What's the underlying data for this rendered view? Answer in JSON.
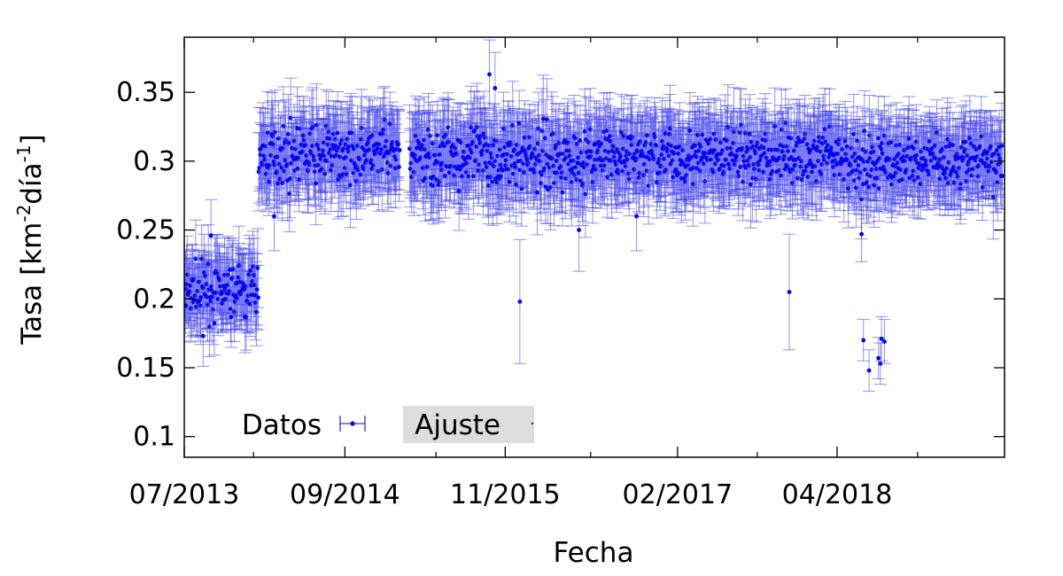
{
  "chart_data": {
    "type": "scatter",
    "xlabel": "Fecha",
    "ylabel": "Tasa [km",
    "ylabel_sup1": "-2",
    "ylabel_mid": "día",
    "ylabel_sup2": "-1",
    "ylabel_end": "]",
    "xlim": [
      "2013-07-01",
      "2019-06-20"
    ],
    "ylim": [
      0.085,
      0.39
    ],
    "x_ticks": [
      {
        "date": "2013-07-01",
        "label": "07/2013"
      },
      {
        "date": "2014-09-01",
        "label": "09/2014"
      },
      {
        "date": "2015-11-01",
        "label": "11/2015"
      },
      {
        "date": "2017-02-01",
        "label": "02/2017"
      },
      {
        "date": "2018-04-01",
        "label": "04/2018"
      }
    ],
    "x_minor_ticks": [
      "2014-01-01",
      "2015-05-01",
      "2016-06-15",
      "2017-09-01",
      "2018-11-01"
    ],
    "y_ticks": [
      {
        "value": 0.1,
        "label": "0.1"
      },
      {
        "value": 0.15,
        "label": "0.15"
      },
      {
        "value": 0.2,
        "label": "0.2"
      },
      {
        "value": 0.25,
        "label": "0.25"
      },
      {
        "value": 0.3,
        "label": "0.3"
      },
      {
        "value": 0.35,
        "label": "0.35"
      }
    ],
    "grid": false,
    "legend_position": "bottom-left",
    "series": [
      {
        "name": "Datos",
        "color": "#0000ee",
        "style": "points-with-y-errorbars",
        "segments": [
          {
            "start": "2013-07-01",
            "end": "2014-01-15",
            "mean": 0.205,
            "spread": 0.015,
            "error": 0.025
          },
          {
            "start": "2014-01-15",
            "end": "2015-01-25",
            "mean": 0.305,
            "spread": 0.016,
            "error": 0.027
          },
          {
            "start": "2015-02-20",
            "end": "2016-07-01",
            "mean": 0.303,
            "spread": 0.018,
            "error": 0.028
          },
          {
            "start": "2016-07-01",
            "end": "2018-03-20",
            "mean": 0.303,
            "spread": 0.016,
            "error": 0.028
          },
          {
            "start": "2018-03-20",
            "end": "2019-06-15",
            "mean": 0.3,
            "spread": 0.016,
            "error": 0.027
          }
        ],
        "outliers": [
          {
            "x": "2013-07-05",
            "y": 0.195,
            "err": 0.02
          },
          {
            "x": "2013-09-10",
            "y": 0.246,
            "err": 0.026
          },
          {
            "x": "2013-08-20",
            "y": 0.173,
            "err": 0.022
          },
          {
            "x": "2014-02-25",
            "y": 0.26,
            "err": 0.025
          },
          {
            "x": "2015-12-10",
            "y": 0.198,
            "err": 0.045
          },
          {
            "x": "2015-09-20",
            "y": 0.363,
            "err": 0.025
          },
          {
            "x": "2015-10-05",
            "y": 0.353,
            "err": 0.026
          },
          {
            "x": "2016-05-15",
            "y": 0.25,
            "err": 0.03
          },
          {
            "x": "2016-10-15",
            "y": 0.26,
            "err": 0.025
          },
          {
            "x": "2017-11-25",
            "y": 0.205,
            "err": 0.042
          },
          {
            "x": "2018-06-05",
            "y": 0.247,
            "err": 0.02
          },
          {
            "x": "2018-06-10",
            "y": 0.17,
            "err": 0.015
          },
          {
            "x": "2018-06-25",
            "y": 0.148,
            "err": 0.015
          },
          {
            "x": "2018-07-20",
            "y": 0.157,
            "err": 0.015
          },
          {
            "x": "2018-07-25",
            "y": 0.153,
            "err": 0.015
          },
          {
            "x": "2018-07-28",
            "y": 0.171,
            "err": 0.016
          },
          {
            "x": "2018-08-05",
            "y": 0.169,
            "err": 0.016
          }
        ]
      },
      {
        "name": "Ajuste",
        "color": "#333333",
        "style": "line"
      }
    ]
  }
}
